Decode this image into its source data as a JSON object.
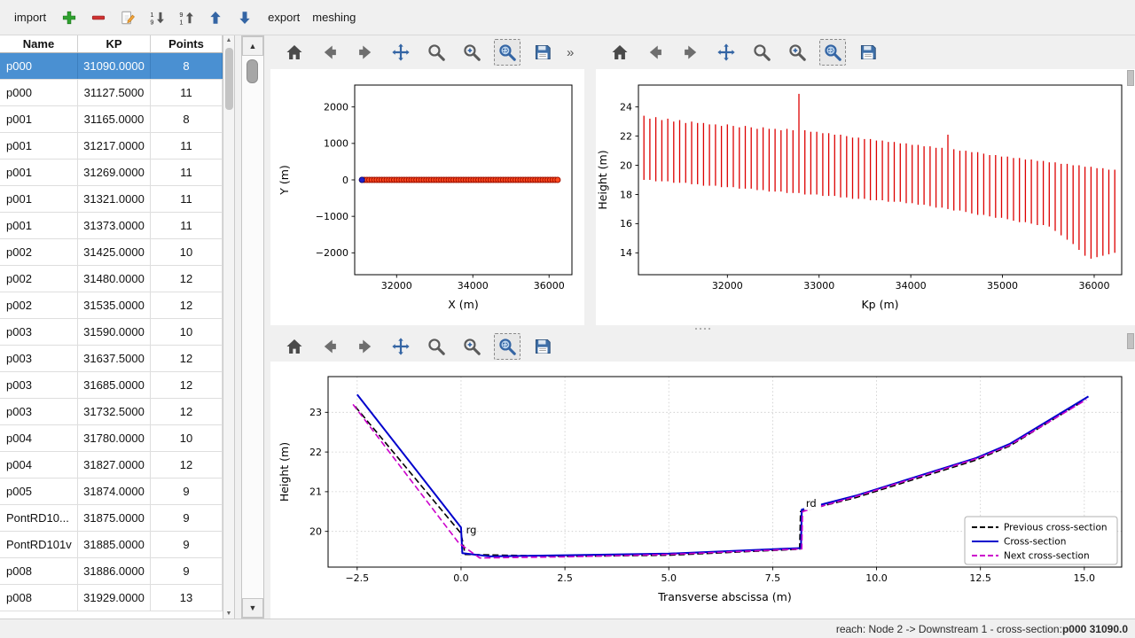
{
  "menubar": {
    "import_label": "import",
    "export_label": "export",
    "meshing_label": "meshing",
    "icon_buttons": [
      "add-icon",
      "remove-icon",
      "edit-icon",
      "sort-descending-icon",
      "sort-ascending-icon",
      "move-up-icon",
      "move-down-icon"
    ]
  },
  "table": {
    "columns": [
      "Name",
      "KP",
      "Points"
    ],
    "selected_row_index": 0,
    "rows": [
      [
        "p000",
        "31090.0000",
        "8"
      ],
      [
        "p000",
        "31127.5000",
        "11"
      ],
      [
        "p001",
        "31165.0000",
        "8"
      ],
      [
        "p001",
        "31217.0000",
        "11"
      ],
      [
        "p001",
        "31269.0000",
        "11"
      ],
      [
        "p001",
        "31321.0000",
        "11"
      ],
      [
        "p001",
        "31373.0000",
        "11"
      ],
      [
        "p002",
        "31425.0000",
        "10"
      ],
      [
        "p002",
        "31480.0000",
        "12"
      ],
      [
        "p002",
        "31535.0000",
        "12"
      ],
      [
        "p003",
        "31590.0000",
        "10"
      ],
      [
        "p003",
        "31637.5000",
        "12"
      ],
      [
        "p003",
        "31685.0000",
        "12"
      ],
      [
        "p003",
        "31732.5000",
        "12"
      ],
      [
        "p004",
        "31780.0000",
        "10"
      ],
      [
        "p004",
        "31827.0000",
        "12"
      ],
      [
        "p005",
        "31874.0000",
        "9"
      ],
      [
        "PontRD10...",
        "31875.0000",
        "9"
      ],
      [
        "PontRD101v",
        "31885.0000",
        "9"
      ],
      [
        "p008",
        "31886.0000",
        "9"
      ],
      [
        "p008",
        "31929.0000",
        "13"
      ]
    ]
  },
  "plot_toolbar": {
    "buttons": [
      "home-icon",
      "back-icon",
      "forward-icon",
      "pan-icon",
      "zoom-icon",
      "zoom-original-icon",
      "zoom-rect-icon",
      "save-icon"
    ],
    "active_button": "zoom-rect-icon",
    "overflow_label": "»"
  },
  "statusbar": {
    "reach_text": "reach: Node 2 -> Downstream 1 - cross-section: ",
    "cross_section": "p000 31090.0"
  },
  "colors": {
    "selection_blue": "#4a90d2",
    "toolbar_accent": "#3465a4",
    "profile_red": "#dd0000",
    "cross_section_blue": "#0000cc",
    "previous_black": "#000000",
    "next_magenta": "#cc00cc",
    "annotation_teal": "#18a5b8"
  },
  "chart_data": [
    {
      "id": "plan-view",
      "type": "scatter",
      "xlabel": "X (m)",
      "ylabel": "Y (m)",
      "xlim": [
        30900,
        36600
      ],
      "ylim": [
        -2600,
        2600
      ],
      "xticks": [
        32000,
        34000,
        36000
      ],
      "yticks": [
        -2000,
        -1000,
        0,
        1000,
        2000
      ],
      "grid": false,
      "marker": {
        "color": "#ff4a1f",
        "edge": "#a01000",
        "size": 3
      },
      "selected_marker": {
        "x": 31090,
        "y": 0,
        "color": "#2020cc"
      },
      "y_constant": 0,
      "x": [
        31090,
        31155,
        31220,
        31285,
        31350,
        31415,
        31480,
        31545,
        31610,
        31675,
        31740,
        31805,
        31870,
        31935,
        32000,
        32065,
        32130,
        32195,
        32260,
        32325,
        32390,
        32455,
        32520,
        32585,
        32650,
        32715,
        32780,
        32845,
        32910,
        32975,
        33040,
        33105,
        33170,
        33235,
        33300,
        33365,
        33430,
        33495,
        33560,
        33625,
        33690,
        33755,
        33820,
        33885,
        33950,
        34015,
        34080,
        34145,
        34210,
        34275,
        34340,
        34405,
        34470,
        34535,
        34600,
        34665,
        34730,
        34795,
        34860,
        34925,
        34990,
        35055,
        35120,
        35185,
        35250,
        35315,
        35380,
        35445,
        35510,
        35575,
        35640,
        35705,
        35770,
        35835,
        35900,
        35965,
        36030,
        36095,
        36160,
        36225
      ]
    },
    {
      "id": "longitudinal-profile",
      "type": "vlines",
      "xlabel": "Kp (m)",
      "ylabel": "Height (m)",
      "xlim": [
        31030,
        36300
      ],
      "ylim": [
        12.5,
        25.5
      ],
      "xticks": [
        32000,
        33000,
        34000,
        35000,
        36000
      ],
      "yticks": [
        14,
        16,
        18,
        20,
        22,
        24
      ],
      "grid": false,
      "color": "#dd0000",
      "lines": [
        [
          31090,
          19.0,
          23.4
        ],
        [
          31155,
          19.0,
          23.2
        ],
        [
          31220,
          18.9,
          23.3
        ],
        [
          31285,
          18.9,
          23.1
        ],
        [
          31350,
          18.9,
          23.2
        ],
        [
          31415,
          18.8,
          23.0
        ],
        [
          31480,
          18.8,
          23.1
        ],
        [
          31545,
          18.8,
          22.9
        ],
        [
          31610,
          18.7,
          23.0
        ],
        [
          31675,
          18.7,
          22.9
        ],
        [
          31740,
          18.6,
          22.9
        ],
        [
          31805,
          18.6,
          22.8
        ],
        [
          31870,
          18.6,
          22.8
        ],
        [
          31935,
          18.5,
          22.7
        ],
        [
          32000,
          18.5,
          22.8
        ],
        [
          32065,
          18.5,
          22.7
        ],
        [
          32130,
          18.4,
          22.6
        ],
        [
          32195,
          18.4,
          22.7
        ],
        [
          32260,
          18.4,
          22.6
        ],
        [
          32325,
          18.3,
          22.5
        ],
        [
          32390,
          18.3,
          22.6
        ],
        [
          32455,
          18.2,
          22.5
        ],
        [
          32520,
          18.2,
          22.5
        ],
        [
          32585,
          18.2,
          22.4
        ],
        [
          32650,
          18.1,
          22.5
        ],
        [
          32715,
          18.1,
          22.4
        ],
        [
          32780,
          18.1,
          24.9
        ],
        [
          32845,
          18.0,
          22.4
        ],
        [
          32910,
          18.0,
          22.3
        ],
        [
          32975,
          18.0,
          22.3
        ],
        [
          33040,
          17.9,
          22.2
        ],
        [
          33105,
          17.9,
          22.2
        ],
        [
          33170,
          17.9,
          22.1
        ],
        [
          33235,
          17.8,
          22.1
        ],
        [
          33300,
          17.8,
          22.0
        ],
        [
          33365,
          17.7,
          21.9
        ],
        [
          33430,
          17.7,
          21.9
        ],
        [
          33495,
          17.7,
          21.8
        ],
        [
          33560,
          17.6,
          21.8
        ],
        [
          33625,
          17.6,
          21.7
        ],
        [
          33690,
          17.6,
          21.7
        ],
        [
          33755,
          17.5,
          21.6
        ],
        [
          33820,
          17.5,
          21.6
        ],
        [
          33885,
          17.5,
          21.5
        ],
        [
          33950,
          17.4,
          21.5
        ],
        [
          34015,
          17.4,
          21.4
        ],
        [
          34080,
          17.3,
          21.4
        ],
        [
          34145,
          17.3,
          21.3
        ],
        [
          34210,
          17.2,
          21.3
        ],
        [
          34275,
          17.1,
          21.2
        ],
        [
          34340,
          17.1,
          21.2
        ],
        [
          34405,
          17.0,
          22.1
        ],
        [
          34470,
          16.9,
          21.1
        ],
        [
          34535,
          16.9,
          21.0
        ],
        [
          34600,
          16.8,
          21.0
        ],
        [
          34665,
          16.7,
          20.9
        ],
        [
          34730,
          16.6,
          20.9
        ],
        [
          34795,
          16.6,
          20.8
        ],
        [
          34860,
          16.5,
          20.7
        ],
        [
          34925,
          16.4,
          20.7
        ],
        [
          34990,
          16.4,
          20.6
        ],
        [
          35055,
          16.3,
          20.6
        ],
        [
          35120,
          16.2,
          20.5
        ],
        [
          35185,
          16.1,
          20.5
        ],
        [
          35250,
          16.1,
          20.4
        ],
        [
          35315,
          16.0,
          20.4
        ],
        [
          35380,
          15.9,
          20.3
        ],
        [
          35445,
          15.9,
          20.3
        ],
        [
          35510,
          15.8,
          20.2
        ],
        [
          35575,
          15.5,
          20.2
        ],
        [
          35640,
          15.2,
          20.1
        ],
        [
          35705,
          14.9,
          20.1
        ],
        [
          35770,
          14.6,
          20.0
        ],
        [
          35835,
          14.2,
          20.0
        ],
        [
          35900,
          13.8,
          19.9
        ],
        [
          35965,
          13.6,
          19.9
        ],
        [
          36030,
          13.7,
          19.8
        ],
        [
          36095,
          13.8,
          19.8
        ],
        [
          36160,
          13.9,
          19.7
        ],
        [
          36225,
          14.0,
          19.7
        ]
      ]
    },
    {
      "id": "cross-section",
      "type": "line",
      "xlabel": "Transverse abscissa (m)",
      "ylabel": "Height (m)",
      "xlim": [
        -3.2,
        15.9
      ],
      "ylim": [
        19.1,
        23.9
      ],
      "xticks": [
        -2.5,
        0,
        2.5,
        5,
        7.5,
        10,
        12.5,
        15
      ],
      "xtick_decimals": 1,
      "yticks": [
        20,
        21,
        22,
        23
      ],
      "grid": true,
      "legend_position": "lower right",
      "series": [
        {
          "name": "Previous cross-section",
          "color": "#000000",
          "dashed": true,
          "width": 1.6,
          "points": [
            [
              -2.55,
              23.15
            ],
            [
              0.0,
              19.95
            ],
            [
              0.1,
              19.42
            ],
            [
              2.5,
              19.37
            ],
            [
              5.0,
              19.4
            ],
            [
              8.15,
              19.55
            ],
            [
              8.17,
              20.5
            ],
            [
              9.5,
              20.85
            ],
            [
              12.4,
              21.8
            ],
            [
              13.2,
              22.15
            ],
            [
              15.0,
              23.3
            ]
          ]
        },
        {
          "name": "Cross-section",
          "color": "#0000cc",
          "dashed": false,
          "width": 2,
          "points": [
            [
              -2.5,
              23.45
            ],
            [
              0.0,
              20.1
            ],
            [
              0.03,
              19.45
            ],
            [
              0.7,
              19.37
            ],
            [
              2.5,
              19.4
            ],
            [
              5.0,
              19.44
            ],
            [
              8.18,
              19.58
            ],
            [
              8.2,
              20.55
            ],
            [
              9.5,
              20.9
            ],
            [
              12.4,
              21.85
            ],
            [
              13.2,
              22.2
            ],
            [
              15.1,
              23.4
            ]
          ]
        },
        {
          "name": "Next cross-section",
          "color": "#cc00cc",
          "dashed": true,
          "width": 1.6,
          "points": [
            [
              -2.6,
              23.2
            ],
            [
              -0.05,
              19.7
            ],
            [
              0.45,
              19.33
            ],
            [
              2.5,
              19.36
            ],
            [
              5.0,
              19.42
            ],
            [
              8.2,
              19.56
            ],
            [
              8.22,
              20.5
            ],
            [
              9.5,
              20.88
            ],
            [
              12.4,
              21.83
            ],
            [
              13.2,
              22.17
            ],
            [
              15.05,
              23.32
            ]
          ]
        }
      ],
      "annotations": [
        {
          "text": "rg",
          "x": 0.12,
          "y": 19.95,
          "color": "#18a5b8",
          "bg": false
        },
        {
          "text": "rd",
          "x": 8.3,
          "y": 20.62,
          "color": "#000000",
          "bg": true
        }
      ]
    }
  ]
}
